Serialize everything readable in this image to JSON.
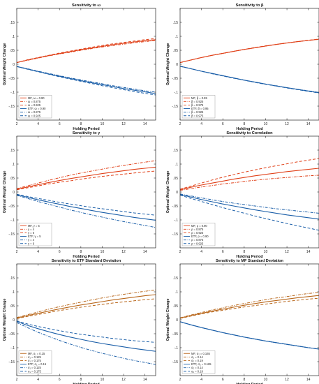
{
  "colors": {
    "mf": "#e04018",
    "etf": "#1a5ea8",
    "mf_brown": "#b8661a",
    "axis": "#262626",
    "grid": "#e8e8e8"
  },
  "chart_data": [
    {
      "type": "line",
      "title": "Sensitivity to ω",
      "xlabel": "Holding Period",
      "ylabel": "Optimal Weight Change",
      "xlim": [
        2,
        15
      ],
      "ylim": [
        -0.2,
        0.2
      ],
      "xticks": [
        2,
        4,
        6,
        8,
        10,
        12,
        14
      ],
      "yticks": [
        -0.15,
        -0.1,
        -0.05,
        0,
        0.05,
        0.1,
        0.15
      ],
      "legend_position": "bottom-left",
      "x": [
        2,
        3,
        4,
        5,
        6,
        7,
        8,
        9,
        10,
        11,
        12,
        13,
        14,
        15
      ],
      "series": [
        {
          "name": "MF, ω = 0.90",
          "group": "mf",
          "dash": "solid",
          "values": [
            0.006,
            0.015,
            0.023,
            0.031,
            0.038,
            0.045,
            0.052,
            0.058,
            0.064,
            0.07,
            0.075,
            0.08,
            0.084,
            0.088
          ]
        },
        {
          "name": "ω = 0.875",
          "group": "mf",
          "dash": "dashdot",
          "values": [
            0.006,
            0.014,
            0.022,
            0.03,
            0.037,
            0.043,
            0.05,
            0.056,
            0.062,
            0.067,
            0.072,
            0.077,
            0.081,
            0.085
          ]
        },
        {
          "name": "ω = 0.925",
          "group": "mf",
          "dash": "dashed",
          "values": [
            0.006,
            0.016,
            0.024,
            0.032,
            0.04,
            0.047,
            0.054,
            0.061,
            0.067,
            0.073,
            0.078,
            0.083,
            0.088,
            0.092
          ]
        },
        {
          "name": "ETF, ω = 0.90",
          "group": "etf",
          "dash": "solid",
          "values": [
            -0.008,
            -0.017,
            -0.026,
            -0.035,
            -0.043,
            -0.051,
            -0.059,
            -0.066,
            -0.073,
            -0.08,
            -0.087,
            -0.093,
            -0.099,
            -0.105
          ]
        },
        {
          "name": "ω = 0.875",
          "group": "etf",
          "dash": "dashdot",
          "values": [
            -0.008,
            -0.016,
            -0.025,
            -0.033,
            -0.041,
            -0.049,
            -0.056,
            -0.063,
            -0.07,
            -0.077,
            -0.083,
            -0.089,
            -0.095,
            -0.1
          ]
        },
        {
          "name": "ω = 0.925",
          "group": "etf",
          "dash": "dashed",
          "values": [
            -0.008,
            -0.018,
            -0.027,
            -0.036,
            -0.045,
            -0.053,
            -0.061,
            -0.069,
            -0.077,
            -0.084,
            -0.091,
            -0.098,
            -0.104,
            -0.11
          ]
        }
      ]
    },
    {
      "type": "line",
      "title": "Sensitivity to β",
      "xlabel": "Holding Period",
      "ylabel": "Optimal Weight Change",
      "xlim": [
        2,
        15
      ],
      "ylim": [
        -0.2,
        0.2
      ],
      "xticks": [
        2,
        4,
        6,
        8,
        10,
        12,
        14
      ],
      "yticks": [
        -0.15,
        -0.1,
        -0.05,
        0,
        0.05,
        0.1,
        0.15
      ],
      "legend_position": "bottom-left",
      "x": [
        2,
        3,
        4,
        5,
        6,
        7,
        8,
        9,
        10,
        11,
        12,
        13,
        14,
        15
      ],
      "series": [
        {
          "name": "MF, β = 0.95",
          "group": "mf",
          "dash": "solid",
          "values": [
            0.006,
            0.015,
            0.024,
            0.032,
            0.039,
            0.046,
            0.053,
            0.059,
            0.065,
            0.071,
            0.076,
            0.081,
            0.085,
            0.09
          ]
        },
        {
          "name": "β = 0.925",
          "group": "mf",
          "dash": "dashdot",
          "values": [
            0.006,
            0.015,
            0.024,
            0.032,
            0.039,
            0.046,
            0.053,
            0.059,
            0.065,
            0.071,
            0.076,
            0.081,
            0.085,
            0.089
          ]
        },
        {
          "name": "β = 0.975",
          "group": "mf",
          "dash": "dashed",
          "values": [
            0.006,
            0.015,
            0.024,
            0.032,
            0.039,
            0.046,
            0.053,
            0.06,
            0.066,
            0.071,
            0.076,
            0.081,
            0.086,
            0.09
          ]
        },
        {
          "name": "ETF, β = 0.95",
          "group": "etf",
          "dash": "solid",
          "values": [
            -0.007,
            -0.016,
            -0.025,
            -0.033,
            -0.041,
            -0.049,
            -0.057,
            -0.064,
            -0.071,
            -0.078,
            -0.084,
            -0.09,
            -0.096,
            -0.102
          ]
        },
        {
          "name": "β = 0.925",
          "group": "etf",
          "dash": "dashdot",
          "values": [
            -0.007,
            -0.016,
            -0.025,
            -0.033,
            -0.041,
            -0.049,
            -0.057,
            -0.064,
            -0.071,
            -0.077,
            -0.084,
            -0.09,
            -0.095,
            -0.101
          ]
        },
        {
          "name": "β = 0.975",
          "group": "etf",
          "dash": "dashed",
          "values": [
            -0.007,
            -0.016,
            -0.025,
            -0.034,
            -0.042,
            -0.05,
            -0.057,
            -0.065,
            -0.072,
            -0.078,
            -0.085,
            -0.091,
            -0.097,
            -0.103
          ]
        }
      ]
    },
    {
      "type": "line",
      "title": "Sensitivity to γ",
      "xlabel": "Holding Period",
      "ylabel": "Optimal Weight Change",
      "xlim": [
        2,
        15
      ],
      "ylim": [
        -0.2,
        0.2
      ],
      "xticks": [
        2,
        4,
        6,
        8,
        10,
        12,
        14
      ],
      "yticks": [
        -0.15,
        -0.1,
        -0.05,
        0,
        0.05,
        0.1,
        0.15
      ],
      "legend_position": "bottom-left",
      "x": [
        2,
        3,
        4,
        5,
        6,
        7,
        8,
        9,
        10,
        11,
        12,
        13,
        14,
        15
      ],
      "series": [
        {
          "name": "MF, γ = 5",
          "group": "mf",
          "dash": "solid",
          "values": [
            0.01,
            0.018,
            0.026,
            0.034,
            0.041,
            0.048,
            0.054,
            0.06,
            0.066,
            0.071,
            0.076,
            0.081,
            0.085,
            0.089
          ]
        },
        {
          "name": "γ = 4",
          "group": "mf",
          "dash": "dashdot",
          "values": [
            0.012,
            0.022,
            0.032,
            0.042,
            0.051,
            0.06,
            0.068,
            0.075,
            0.082,
            0.089,
            0.095,
            0.101,
            0.107,
            0.112
          ]
        },
        {
          "name": "γ = 6",
          "group": "mf",
          "dash": "dashed",
          "values": [
            0.008,
            0.015,
            0.022,
            0.029,
            0.035,
            0.04,
            0.046,
            0.051,
            0.056,
            0.06,
            0.064,
            0.068,
            0.072,
            0.075
          ]
        },
        {
          "name": "ETF, γ = 5",
          "group": "etf",
          "dash": "solid",
          "values": [
            -0.01,
            -0.019,
            -0.028,
            -0.036,
            -0.044,
            -0.052,
            -0.059,
            -0.066,
            -0.073,
            -0.079,
            -0.085,
            -0.091,
            -0.096,
            -0.101
          ]
        },
        {
          "name": "γ = 4",
          "group": "etf",
          "dash": "dashdot",
          "values": [
            -0.012,
            -0.023,
            -0.034,
            -0.044,
            -0.054,
            -0.064,
            -0.073,
            -0.082,
            -0.09,
            -0.098,
            -0.106,
            -0.113,
            -0.12,
            -0.127
          ]
        },
        {
          "name": "γ = 6",
          "group": "etf",
          "dash": "dashed",
          "values": [
            -0.008,
            -0.016,
            -0.023,
            -0.03,
            -0.037,
            -0.043,
            -0.049,
            -0.055,
            -0.06,
            -0.065,
            -0.07,
            -0.075,
            -0.079,
            -0.083
          ]
        }
      ]
    },
    {
      "type": "line",
      "title": "Sensitivity to Correlation",
      "xlabel": "Holding Period",
      "ylabel": "Optimal Weight Change",
      "xlim": [
        2,
        15
      ],
      "ylim": [
        -0.2,
        0.2
      ],
      "xticks": [
        2,
        4,
        6,
        8,
        10,
        12,
        14
      ],
      "yticks": [
        -0.15,
        -0.1,
        -0.05,
        0,
        0.05,
        0.1,
        0.15
      ],
      "legend_position": "bottom-left",
      "x": [
        2,
        3,
        4,
        5,
        6,
        7,
        8,
        9,
        10,
        11,
        12,
        13,
        14,
        15
      ],
      "series": [
        {
          "name": "MF, ρ = 0.90",
          "group": "mf",
          "dash": "solid",
          "values": [
            0.008,
            0.017,
            0.025,
            0.032,
            0.039,
            0.046,
            0.052,
            0.058,
            0.063,
            0.068,
            0.073,
            0.077,
            0.081,
            0.085
          ]
        },
        {
          "name": "ρ = 0.875",
          "group": "mf",
          "dash": "dashdot",
          "values": [
            0.006,
            0.012,
            0.018,
            0.023,
            0.029,
            0.033,
            0.038,
            0.042,
            0.046,
            0.049,
            0.052,
            0.055,
            0.058,
            0.06
          ]
        },
        {
          "name": "ρ = 0.925",
          "group": "mf",
          "dash": "dashed",
          "values": [
            0.01,
            0.021,
            0.032,
            0.043,
            0.053,
            0.062,
            0.071,
            0.079,
            0.087,
            0.094,
            0.101,
            0.108,
            0.114,
            0.12
          ]
        },
        {
          "name": "ETF, ρ = 0.90",
          "group": "etf",
          "dash": "solid",
          "values": [
            -0.009,
            -0.018,
            -0.027,
            -0.035,
            -0.043,
            -0.05,
            -0.057,
            -0.064,
            -0.07,
            -0.076,
            -0.082,
            -0.087,
            -0.092,
            -0.097
          ]
        },
        {
          "name": "ρ = 0.875",
          "group": "etf",
          "dash": "dashdot",
          "values": [
            -0.007,
            -0.014,
            -0.021,
            -0.028,
            -0.034,
            -0.04,
            -0.045,
            -0.05,
            -0.055,
            -0.06,
            -0.064,
            -0.068,
            -0.072,
            -0.076
          ]
        },
        {
          "name": "ρ = 0.925",
          "group": "etf",
          "dash": "dashed",
          "values": [
            -0.011,
            -0.023,
            -0.034,
            -0.045,
            -0.056,
            -0.066,
            -0.076,
            -0.086,
            -0.095,
            -0.104,
            -0.113,
            -0.121,
            -0.129,
            -0.137
          ]
        }
      ]
    },
    {
      "type": "line",
      "title": "Sensitivity to ETF Standard Deviation",
      "xlabel": "Holding Period",
      "ylabel": "Optimal Weight Change",
      "xlim": [
        2,
        15
      ],
      "ylim": [
        -0.2,
        0.2
      ],
      "xticks": [
        2,
        4,
        6,
        8,
        10,
        12,
        14
      ],
      "yticks": [
        -0.15,
        -0.1,
        -0.05,
        0,
        0.05,
        0.1,
        0.15
      ],
      "legend_position": "bottom-left",
      "x": [
        2,
        3,
        4,
        5,
        6,
        7,
        8,
        9,
        10,
        11,
        12,
        13,
        14,
        15
      ],
      "series": [
        {
          "name": "MF, σ₁ = 0.15",
          "group": "mfb",
          "dash": "solid",
          "values": [
            0.006,
            0.015,
            0.023,
            0.031,
            0.039,
            0.046,
            0.053,
            0.059,
            0.065,
            0.071,
            0.076,
            0.081,
            0.086,
            0.09
          ]
        },
        {
          "name": "σ₁ = 0.125",
          "group": "mfb",
          "dash": "dashdot",
          "values": [
            0.008,
            0.018,
            0.028,
            0.038,
            0.047,
            0.055,
            0.063,
            0.071,
            0.078,
            0.085,
            0.091,
            0.097,
            0.102,
            0.107
          ]
        },
        {
          "name": "σ₁ = 0.175",
          "group": "mfb",
          "dash": "dashed",
          "values": [
            0.004,
            0.012,
            0.019,
            0.026,
            0.033,
            0.039,
            0.045,
            0.05,
            0.055,
            0.06,
            0.064,
            0.068,
            0.072,
            0.075
          ]
        },
        {
          "name": "ETF, σ₁ = 0.15",
          "group": "etf",
          "dash": "solid",
          "values": [
            -0.006,
            -0.02,
            -0.032,
            -0.043,
            -0.053,
            -0.062,
            -0.07,
            -0.078,
            -0.085,
            -0.091,
            -0.097,
            -0.103,
            -0.108,
            -0.113
          ]
        },
        {
          "name": "σ₁ = 0.125",
          "group": "etf",
          "dash": "dashdot",
          "values": [
            -0.01,
            -0.028,
            -0.045,
            -0.06,
            -0.074,
            -0.087,
            -0.099,
            -0.11,
            -0.12,
            -0.129,
            -0.138,
            -0.146,
            -0.153,
            -0.16
          ]
        },
        {
          "name": "σ₁ = 0.175",
          "group": "etf",
          "dash": "dashed",
          "values": [
            -0.004,
            -0.015,
            -0.024,
            -0.032,
            -0.039,
            -0.046,
            -0.052,
            -0.057,
            -0.062,
            -0.067,
            -0.071,
            -0.075,
            -0.078,
            -0.081
          ]
        }
      ]
    },
    {
      "type": "line",
      "title": "Sensitivity to MF Standard Deviation",
      "xlabel": "Holding Period",
      "ylabel": "Optimal Weight Change",
      "xlim": [
        2,
        15
      ],
      "ylim": [
        -0.2,
        0.2
      ],
      "xticks": [
        2,
        4,
        6,
        8,
        10,
        12,
        14
      ],
      "yticks": [
        -0.15,
        -0.1,
        -0.05,
        0,
        0.05,
        0.1,
        0.15
      ],
      "legend_position": "bottom-left",
      "x": [
        2,
        3,
        4,
        5,
        6,
        7,
        8,
        9,
        10,
        11,
        12,
        13,
        14,
        15
      ],
      "series": [
        {
          "name": "MF, σ₂ = 0.165",
          "group": "mfb",
          "dash": "solid",
          "values": [
            0.006,
            0.015,
            0.023,
            0.031,
            0.038,
            0.045,
            0.052,
            0.058,
            0.064,
            0.069,
            0.074,
            0.079,
            0.083,
            0.087
          ]
        },
        {
          "name": "σ₂ = 0.14",
          "group": "mfb",
          "dash": "dashdot",
          "values": [
            0.007,
            0.017,
            0.026,
            0.035,
            0.043,
            0.051,
            0.058,
            0.065,
            0.072,
            0.078,
            0.083,
            0.089,
            0.094,
            0.098
          ]
        },
        {
          "name": "σ₂ = 0.19",
          "group": "mfb",
          "dash": "dashed",
          "values": [
            0.005,
            0.013,
            0.021,
            0.028,
            0.034,
            0.04,
            0.046,
            0.051,
            0.056,
            0.061,
            0.066,
            0.07,
            0.074,
            0.077
          ]
        },
        {
          "name": "ETF, σ₂ = 0.165",
          "group": "etf",
          "dash": "solid",
          "values": [
            -0.007,
            -0.018,
            -0.028,
            -0.037,
            -0.046,
            -0.054,
            -0.062,
            -0.069,
            -0.076,
            -0.082,
            -0.088,
            -0.094,
            -0.1,
            -0.105
          ]
        },
        {
          "name": "σ₂ = 0.14",
          "group": "etf",
          "dash": "dashdot",
          "values": [
            -0.007,
            -0.018,
            -0.028,
            -0.037,
            -0.046,
            -0.054,
            -0.062,
            -0.069,
            -0.076,
            -0.082,
            -0.088,
            -0.094,
            -0.1,
            -0.105
          ]
        },
        {
          "name": "σ₂ = 0.19",
          "group": "etf",
          "dash": "dashed",
          "values": [
            -0.007,
            -0.018,
            -0.028,
            -0.037,
            -0.046,
            -0.054,
            -0.062,
            -0.069,
            -0.076,
            -0.082,
            -0.088,
            -0.094,
            -0.1,
            -0.105
          ]
        }
      ]
    }
  ]
}
